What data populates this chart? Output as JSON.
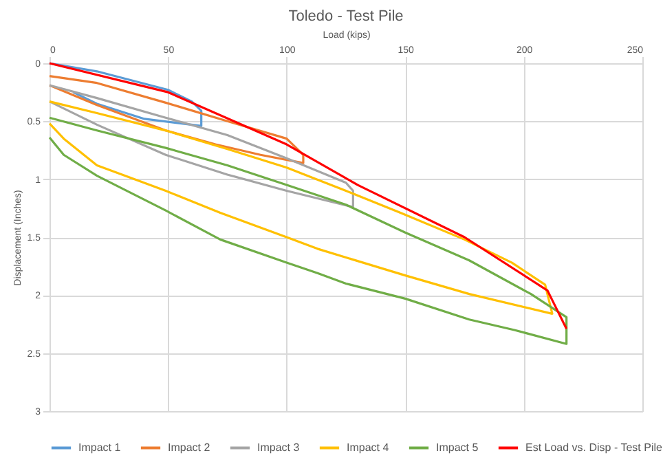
{
  "chart_data": {
    "type": "line",
    "title": "Toledo - Test Pile",
    "xlabel": "Load (kips)",
    "ylabel": "Displacement (Inches)",
    "xlim": [
      0,
      250
    ],
    "xticks": [
      0,
      50,
      100,
      150,
      200,
      250
    ],
    "ylim": [
      3,
      0
    ],
    "yticks": [
      0,
      0.5,
      1,
      1.5,
      2,
      2.5,
      3
    ],
    "grid": true,
    "legend": "bottom",
    "marker": "none",
    "line_style": "solid",
    "series": [
      {
        "name": "Impact 1",
        "color": "#5b9bd5",
        "x": [
          0,
          20,
          50,
          60,
          64,
          64,
          40,
          20,
          10
        ],
        "values": [
          0,
          0.07,
          0.23,
          0.33,
          0.41,
          0.54,
          0.48,
          0.35,
          0.25
        ]
      },
      {
        "name": "Impact 2",
        "color": "#ed7d31",
        "x": [
          0,
          20,
          49,
          75,
          100,
          107,
          107,
          89,
          70,
          49,
          20,
          0
        ],
        "values": [
          0.11,
          0.17,
          0.34,
          0.5,
          0.65,
          0.79,
          0.86,
          0.79,
          0.7,
          0.58,
          0.36,
          0.19
        ]
      },
      {
        "name": "Impact 3",
        "color": "#a5a5a5",
        "x": [
          0,
          20,
          49,
          75,
          100,
          125,
          128,
          128,
          100,
          75,
          49,
          20,
          0
        ],
        "values": [
          0.19,
          0.3,
          0.47,
          0.62,
          0.82,
          1.03,
          1.1,
          1.24,
          1.1,
          0.96,
          0.79,
          0.53,
          0.33
        ]
      },
      {
        "name": "Impact 4",
        "color": "#ffc000",
        "x": [
          0,
          20,
          49,
          75,
          100,
          125,
          148,
          175,
          195,
          209,
          212,
          177,
          150,
          113,
          100,
          72,
          49,
          20,
          6,
          0
        ],
        "values": [
          0.33,
          0.43,
          0.58,
          0.74,
          0.9,
          1.1,
          1.29,
          1.52,
          1.72,
          1.91,
          2.16,
          1.99,
          1.83,
          1.6,
          1.5,
          1.29,
          1.1,
          0.88,
          0.65,
          0.52
        ]
      },
      {
        "name": "Impact 5",
        "color": "#70ad47",
        "x": [
          0,
          20,
          49,
          75,
          100,
          125,
          150,
          177,
          203,
          218,
          218,
          196,
          177,
          150,
          125,
          113,
          100,
          72,
          49,
          20,
          6,
          0
        ],
        "values": [
          0.47,
          0.58,
          0.73,
          0.88,
          1.05,
          1.22,
          1.46,
          1.7,
          1.99,
          2.19,
          2.42,
          2.3,
          2.21,
          2.03,
          1.9,
          1.81,
          1.72,
          1.52,
          1.27,
          0.97,
          0.79,
          0.64
        ]
      },
      {
        "name": "Est Load vs. Disp - Test Pile",
        "color": "#ff0000",
        "x": [
          0,
          50,
          100,
          130,
          175,
          210,
          218
        ],
        "values": [
          0,
          0.25,
          0.7,
          1.05,
          1.5,
          1.96,
          2.29
        ]
      }
    ]
  }
}
